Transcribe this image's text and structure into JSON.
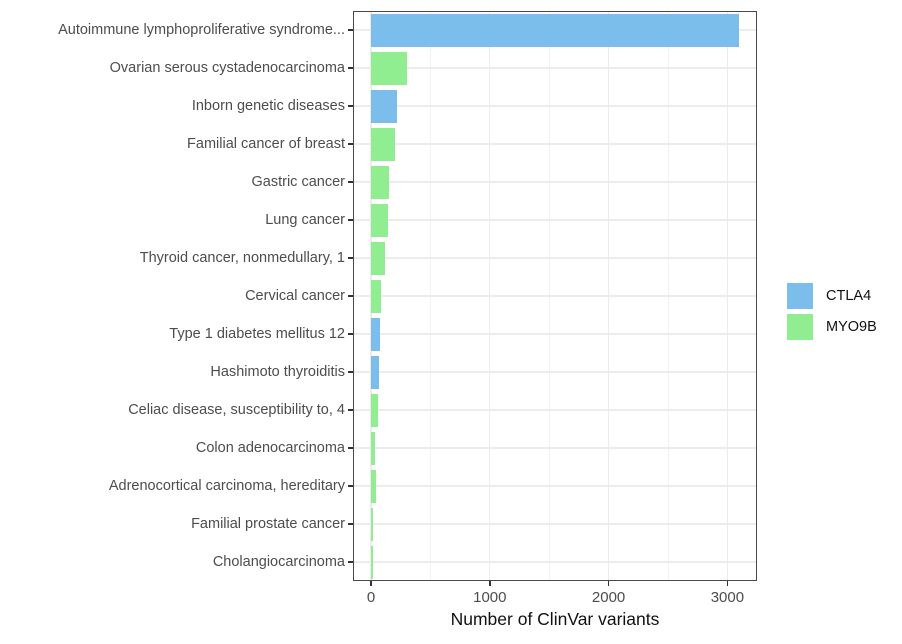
{
  "chart_data": {
    "type": "bar",
    "orientation": "horizontal",
    "title": "",
    "xlabel": "Number of ClinVar variants",
    "ylabel": "",
    "categories": [
      "Autoimmune lymphoproliferative syndrome...",
      "Ovarian serous cystadenocarcinoma",
      "Inborn genetic diseases",
      "Familial cancer of breast",
      "Gastric cancer",
      "Lung cancer",
      "Thyroid cancer, nonmedullary, 1",
      "Cervical cancer",
      "Type 1 diabetes mellitus 12",
      "Hashimoto thyroiditis",
      "Celiac disease, susceptibility to, 4",
      "Colon adenocarcinoma",
      "Adrenocortical carcinoma, hereditary",
      "Familial prostate cancer",
      "Cholangiocarcinoma"
    ],
    "values": [
      3100,
      300,
      215,
      205,
      150,
      145,
      120,
      80,
      72,
      70,
      60,
      35,
      42,
      18,
      15
    ],
    "groups": [
      "CTLA4",
      "MYO9B",
      "CTLA4",
      "MYO9B",
      "MYO9B",
      "MYO9B",
      "MYO9B",
      "MYO9B",
      "CTLA4",
      "CTLA4",
      "MYO9B",
      "MYO9B",
      "MYO9B",
      "MYO9B",
      "MYO9B"
    ],
    "legend": [
      {
        "label": "CTLA4",
        "color": "#7CBEEB"
      },
      {
        "label": "MYO9B",
        "color": "#90EE90"
      }
    ],
    "legend_position": "right",
    "xticks": [
      {
        "value": 0,
        "label": "0"
      },
      {
        "value": 1000,
        "label": "1000"
      },
      {
        "value": 2000,
        "label": "2000"
      },
      {
        "value": 3000,
        "label": "3000"
      }
    ],
    "minor_ticks": [
      500,
      1500,
      2500
    ],
    "xlim": [
      0,
      3250
    ],
    "grid": true,
    "colors": {
      "panel_border": "#4a4a4a",
      "grid_major": "#ececec",
      "grid_minor": "#f2f2f2",
      "axis_text": "#4d4d4d",
      "axis_title": "#111111",
      "background": "#ffffff"
    }
  }
}
